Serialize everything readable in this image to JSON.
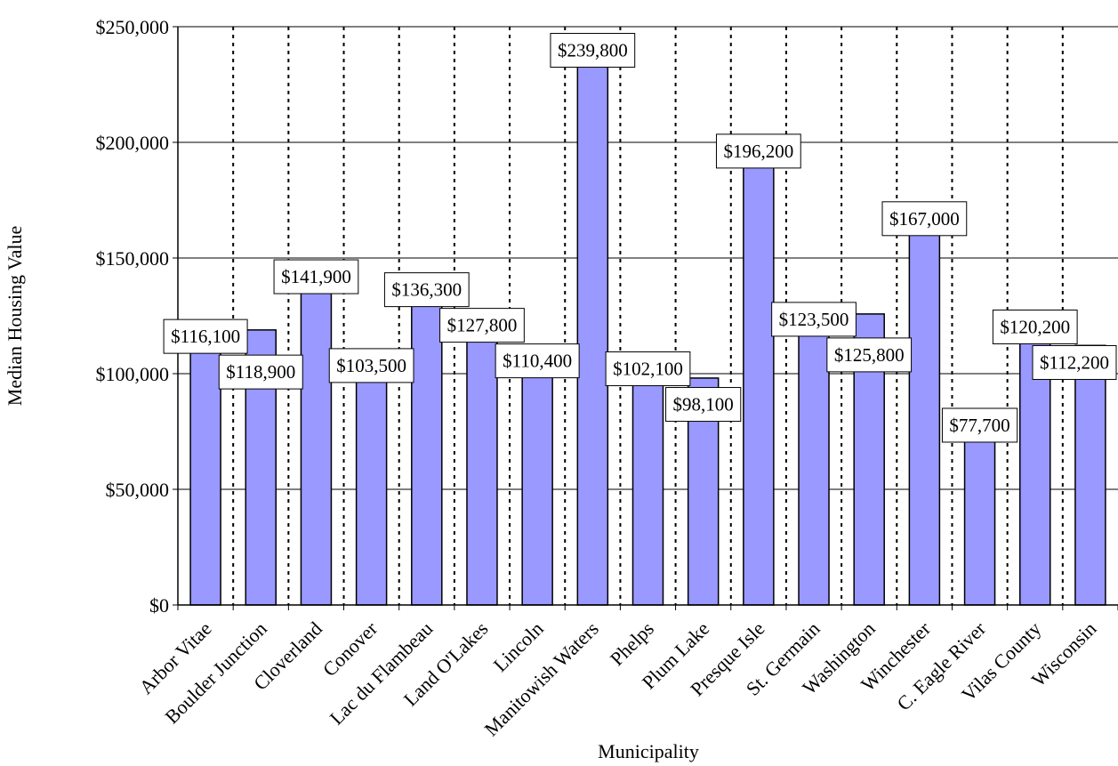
{
  "chart_data": {
    "type": "bar",
    "title": "",
    "xlabel": "Municipality",
    "ylabel": "Median Housing Value",
    "categories": [
      "Arbor Vitae",
      "Boulder Junction",
      "Cloverland",
      "Conover",
      "Lac du Flambeau",
      "Land O'Lakes",
      "Lincoln",
      "Manitowish Waters",
      "Phelps",
      "Plum Lake",
      "Presque Isle",
      "St. Germain",
      "Washington",
      "Winchester",
      "C. Eagle River",
      "Vilas County",
      "Wisconsin"
    ],
    "values": [
      116100,
      118900,
      141900,
      103500,
      136300,
      127800,
      110400,
      239800,
      102100,
      98100,
      196200,
      123500,
      125800,
      167000,
      77700,
      120200,
      112200
    ],
    "value_labels": [
      "$116,100",
      "$118,900",
      "$141,900",
      "$103,500",
      "$136,300",
      "$127,800",
      "$110,400",
      "$239,800",
      "$102,100",
      "$98,100",
      "$196,200",
      "$123,500",
      "$125,800",
      "$167,000",
      "$77,700",
      "$120,200",
      "$112,200"
    ],
    "ylim": [
      0,
      250000
    ],
    "yticks": [
      0,
      50000,
      100000,
      150000,
      200000,
      250000
    ],
    "ytick_labels": [
      "$0",
      "$50,000",
      "$100,000",
      "$150,000",
      "$200,000",
      "$250,000"
    ],
    "grid": true,
    "legend": "none",
    "colors": {
      "bar": "#9999ff",
      "bar_border": "#000000",
      "grid": "#000000"
    }
  }
}
